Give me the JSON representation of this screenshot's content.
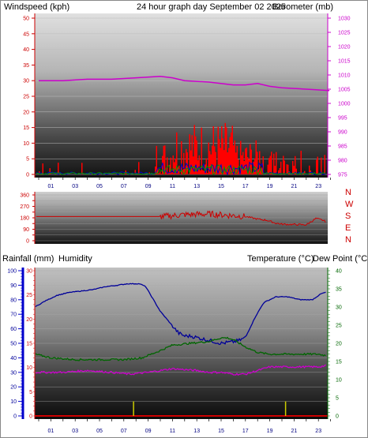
{
  "chart_data": [
    {
      "type": "line",
      "title": "24 hour graph day    September 02 2025",
      "left_label": "Windspeed (kph)",
      "right_label": "Barometer (mb)",
      "x_ticks": [
        "01",
        "03",
        "05",
        "07",
        "09",
        "11",
        "13",
        "15",
        "17",
        "19",
        "21",
        "23"
      ],
      "ylim_left": [
        0,
        50
      ],
      "y_ticks_left": [
        0,
        5,
        10,
        15,
        20,
        25,
        30,
        35,
        40,
        45,
        50
      ],
      "ylim_right": [
        975,
        1030
      ],
      "y_ticks_right": [
        975,
        980,
        985,
        990,
        995,
        1000,
        1005,
        1010,
        1015,
        1020,
        1025,
        1030
      ],
      "colors": {
        "title": "#ffcc00",
        "left": "#cc0000",
        "right": "#cc00cc",
        "wind": "#ff0000",
        "gust": "#0000cc",
        "avg": "#009900",
        "baro": "#cc00cc",
        "axis_ticks": "#000080"
      },
      "series": [
        {
          "axis": "right",
          "x": [
            0,
            2,
            4,
            6,
            8,
            10,
            11,
            12,
            14,
            16,
            17,
            18,
            19,
            20,
            22,
            23.9
          ],
          "values": [
            1008,
            1008,
            1008.5,
            1008.5,
            1009,
            1009.5,
            1009,
            1008,
            1007.5,
            1006.5,
            1006.5,
            1007,
            1006,
            1005.5,
            1005,
            1004.5
          ]
        }
      ]
    },
    {
      "type": "line",
      "right_labels": [
        "N",
        "W",
        "S",
        "E",
        "N"
      ],
      "ylim": [
        0,
        360
      ],
      "y_ticks": [
        0,
        45,
        90,
        135,
        180,
        225,
        270,
        315,
        360
      ],
      "colors": {
        "dir": "#cc0000",
        "ticks": "#cc0000"
      },
      "series": [
        {
          "x": [
            0,
            9.8,
            10.2,
            12,
            14,
            16.4,
            17,
            18,
            18.8,
            19.4,
            20,
            22,
            22.8,
            23.4,
            23.9
          ],
          "values": [
            190,
            190,
            190,
            205,
            210,
            195,
            190,
            170,
            160,
            140,
            130,
            125,
            175,
            160,
            130
          ]
        }
      ]
    },
    {
      "type": "line",
      "left_label_rain": "Rainfall (mm)",
      "left_label_hum": "Humidity",
      "right_label_temp": "Temperature (°C)",
      "right_label_dew": "Dew Point (°C)",
      "x_ticks": [
        "01",
        "03",
        "05",
        "07",
        "09",
        "11",
        "13",
        "15",
        "17",
        "19",
        "21",
        "23"
      ],
      "ylim_humidity": [
        0,
        100
      ],
      "y_ticks_humidity": [
        0,
        10,
        20,
        30,
        40,
        50,
        60,
        70,
        80,
        90,
        100
      ],
      "ylim_rain": [
        0,
        30
      ],
      "y_ticks_rain": [
        0,
        5,
        10,
        15,
        20,
        25,
        30
      ],
      "ylim_temp": [
        0,
        40
      ],
      "y_ticks_temp": [
        0,
        5,
        10,
        15,
        20,
        25,
        30,
        35,
        40
      ],
      "colors": {
        "rain": "#cc0000",
        "hum": "#000099",
        "temp": "#006600",
        "dew": "#cc00cc",
        "rainfall_bar": "#cccc00",
        "humidity_axis": "#0000cc"
      },
      "series": [
        {
          "name": "Humidity",
          "axis": "humidity",
          "x": [
            -0.3,
            0.5,
            1.5,
            2.5,
            3.5,
            4.5,
            5.5,
            6.5,
            7.3,
            7.8,
            8.3,
            8.8,
            10,
            11,
            11.5,
            12,
            12.5,
            13,
            14,
            15,
            16,
            16.5,
            17,
            17.8,
            18.5,
            19.5,
            20.5,
            21.5,
            22.5,
            23.2,
            23.9
          ],
          "values": [
            75,
            79,
            83,
            85,
            86,
            87,
            89,
            90,
            91,
            91,
            91,
            89,
            72,
            62,
            57,
            55,
            55,
            54,
            52,
            50,
            51,
            52,
            54,
            68,
            78,
            82,
            82,
            80,
            80,
            84,
            86
          ]
        },
        {
          "name": "Temperature",
          "axis": "temp",
          "x": [
            -0.3,
            1,
            3,
            5,
            7,
            8.5,
            10,
            11,
            12.5,
            14,
            15,
            15.5,
            16,
            17,
            18,
            19,
            21,
            23,
            23.9
          ],
          "values": [
            17,
            16,
            15.5,
            15.5,
            15.5,
            16,
            18,
            19.5,
            20,
            20.5,
            21.5,
            21.5,
            21,
            19,
            17.5,
            17,
            17,
            17,
            16.5
          ]
        },
        {
          "name": "Dew Point",
          "axis": "temp",
          "x": [
            -0.3,
            2,
            4,
            6,
            7.5,
            9,
            11,
            13,
            14,
            15,
            16,
            17,
            18,
            19,
            21,
            23,
            23.9
          ],
          "values": [
            12,
            12,
            12.5,
            12,
            11.5,
            12,
            13,
            12.5,
            12,
            12,
            11.5,
            11.5,
            12.5,
            13.5,
            13.5,
            13.5,
            14
          ]
        },
        {
          "name": "Rainfall",
          "axis": "rain",
          "x": [
            7.8,
            20.3
          ],
          "values": [
            3,
            3
          ]
        }
      ]
    }
  ]
}
